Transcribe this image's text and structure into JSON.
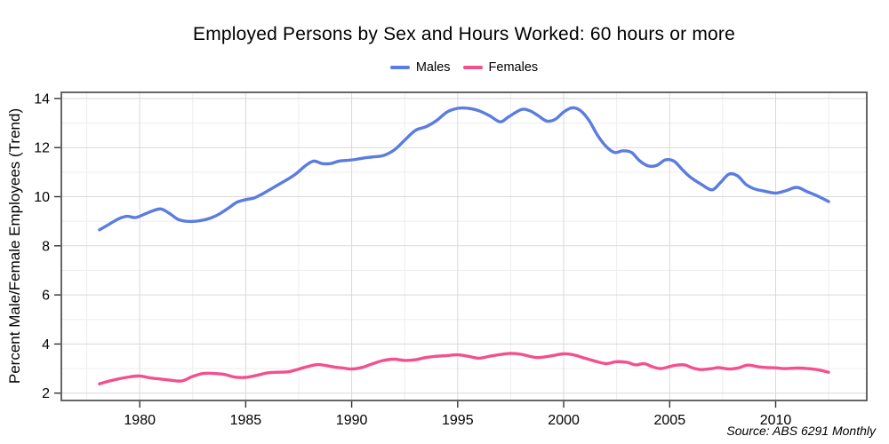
{
  "header": {
    "title": "Employed Persons by Sex and Hours Worked: 60 hours or more"
  },
  "legend": {
    "items": [
      {
        "label": "Males",
        "color": "#5b7ce0"
      },
      {
        "label": "Females",
        "color": "#f2508f"
      }
    ]
  },
  "source_note": "Source: ABS 6291 Monthly",
  "colors": {
    "major_grid": "#d9d9d9",
    "minor_grid": "#ededed",
    "panel_border": "#555555",
    "tick": "#333333",
    "tick_label": "#000000"
  },
  "chart_data": {
    "type": "line",
    "title": "Employed Persons by Sex and Hours Worked: 60 hours or more",
    "xlabel": "",
    "ylabel": "Percent Male/Female Employees (Trend)",
    "legend_position": "top",
    "grid": true,
    "xlim": [
      1976.3,
      2014.3
    ],
    "ylim": [
      1.7,
      14.25
    ],
    "x_ticks": [
      1980,
      1985,
      1990,
      1995,
      2000,
      2005,
      2010
    ],
    "x_minor_ticks": [
      1977.5,
      1982.5,
      1987.5,
      1992.5,
      1997.5,
      2002.5,
      2007.5,
      2012.5
    ],
    "y_ticks": [
      2,
      4,
      6,
      8,
      10,
      12,
      14
    ],
    "y_minor_ticks": [
      3,
      5,
      7,
      9,
      11,
      13
    ],
    "series": [
      {
        "name": "Males",
        "color": "#5b7ce0",
        "points": [
          [
            1978.1,
            8.65
          ],
          [
            1978.5,
            8.85
          ],
          [
            1979.0,
            9.1
          ],
          [
            1979.4,
            9.2
          ],
          [
            1979.8,
            9.15
          ],
          [
            1980.2,
            9.28
          ],
          [
            1980.6,
            9.42
          ],
          [
            1981.0,
            9.5
          ],
          [
            1981.4,
            9.32
          ],
          [
            1981.8,
            9.08
          ],
          [
            1982.2,
            9.0
          ],
          [
            1982.6,
            9.0
          ],
          [
            1983.0,
            9.05
          ],
          [
            1983.4,
            9.15
          ],
          [
            1983.8,
            9.32
          ],
          [
            1984.2,
            9.55
          ],
          [
            1984.6,
            9.78
          ],
          [
            1985.0,
            9.88
          ],
          [
            1985.4,
            9.95
          ],
          [
            1985.8,
            10.12
          ],
          [
            1986.2,
            10.32
          ],
          [
            1986.6,
            10.52
          ],
          [
            1987.0,
            10.72
          ],
          [
            1987.4,
            10.95
          ],
          [
            1987.8,
            11.25
          ],
          [
            1988.2,
            11.45
          ],
          [
            1988.6,
            11.35
          ],
          [
            1989.0,
            11.35
          ],
          [
            1989.4,
            11.45
          ],
          [
            1989.8,
            11.48
          ],
          [
            1990.2,
            11.52
          ],
          [
            1990.6,
            11.58
          ],
          [
            1991.0,
            11.62
          ],
          [
            1991.5,
            11.68
          ],
          [
            1992.0,
            11.9
          ],
          [
            1992.5,
            12.3
          ],
          [
            1993.0,
            12.7
          ],
          [
            1993.5,
            12.85
          ],
          [
            1994.0,
            13.1
          ],
          [
            1994.5,
            13.45
          ],
          [
            1995.0,
            13.6
          ],
          [
            1995.5,
            13.6
          ],
          [
            1996.0,
            13.5
          ],
          [
            1996.5,
            13.3
          ],
          [
            1997.0,
            13.05
          ],
          [
            1997.4,
            13.25
          ],
          [
            1998.0,
            13.55
          ],
          [
            1998.4,
            13.5
          ],
          [
            1998.8,
            13.3
          ],
          [
            1999.2,
            13.08
          ],
          [
            1999.6,
            13.15
          ],
          [
            2000.0,
            13.45
          ],
          [
            2000.4,
            13.62
          ],
          [
            2000.8,
            13.5
          ],
          [
            2001.2,
            13.1
          ],
          [
            2001.6,
            12.5
          ],
          [
            2002.0,
            12.05
          ],
          [
            2002.4,
            11.8
          ],
          [
            2002.8,
            11.87
          ],
          [
            2003.2,
            11.8
          ],
          [
            2003.6,
            11.45
          ],
          [
            2004.0,
            11.25
          ],
          [
            2004.4,
            11.28
          ],
          [
            2004.8,
            11.5
          ],
          [
            2005.2,
            11.45
          ],
          [
            2005.6,
            11.1
          ],
          [
            2006.0,
            10.78
          ],
          [
            2006.5,
            10.5
          ],
          [
            2007.0,
            10.28
          ],
          [
            2007.4,
            10.58
          ],
          [
            2007.8,
            10.92
          ],
          [
            2008.2,
            10.85
          ],
          [
            2008.6,
            10.5
          ],
          [
            2009.0,
            10.32
          ],
          [
            2009.5,
            10.22
          ],
          [
            2010.0,
            10.15
          ],
          [
            2010.5,
            10.25
          ],
          [
            2011.0,
            10.38
          ],
          [
            2011.5,
            10.2
          ],
          [
            2012.0,
            10.02
          ],
          [
            2012.5,
            9.8
          ]
        ]
      },
      {
        "name": "Females",
        "color": "#f2508f",
        "points": [
          [
            1978.1,
            2.38
          ],
          [
            1978.6,
            2.5
          ],
          [
            1979.0,
            2.58
          ],
          [
            1979.5,
            2.66
          ],
          [
            1980.0,
            2.7
          ],
          [
            1980.5,
            2.62
          ],
          [
            1981.0,
            2.57
          ],
          [
            1981.5,
            2.52
          ],
          [
            1982.0,
            2.5
          ],
          [
            1982.5,
            2.68
          ],
          [
            1983.0,
            2.8
          ],
          [
            1983.5,
            2.8
          ],
          [
            1984.0,
            2.76
          ],
          [
            1984.5,
            2.65
          ],
          [
            1985.0,
            2.64
          ],
          [
            1985.5,
            2.72
          ],
          [
            1986.0,
            2.82
          ],
          [
            1986.5,
            2.85
          ],
          [
            1987.0,
            2.87
          ],
          [
            1987.5,
            2.98
          ],
          [
            1988.0,
            3.1
          ],
          [
            1988.4,
            3.16
          ],
          [
            1988.8,
            3.12
          ],
          [
            1989.2,
            3.06
          ],
          [
            1989.6,
            3.02
          ],
          [
            1990.0,
            2.98
          ],
          [
            1990.5,
            3.05
          ],
          [
            1991.0,
            3.2
          ],
          [
            1991.5,
            3.33
          ],
          [
            1992.0,
            3.38
          ],
          [
            1992.5,
            3.33
          ],
          [
            1993.0,
            3.36
          ],
          [
            1993.5,
            3.45
          ],
          [
            1994.0,
            3.5
          ],
          [
            1994.5,
            3.53
          ],
          [
            1995.0,
            3.56
          ],
          [
            1995.5,
            3.5
          ],
          [
            1996.0,
            3.42
          ],
          [
            1996.5,
            3.5
          ],
          [
            1997.0,
            3.57
          ],
          [
            1997.5,
            3.62
          ],
          [
            1998.0,
            3.58
          ],
          [
            1998.7,
            3.45
          ],
          [
            1999.3,
            3.5
          ],
          [
            2000.0,
            3.6
          ],
          [
            2000.5,
            3.55
          ],
          [
            2001.0,
            3.42
          ],
          [
            2001.5,
            3.3
          ],
          [
            2002.0,
            3.2
          ],
          [
            2002.5,
            3.28
          ],
          [
            2003.0,
            3.25
          ],
          [
            2003.4,
            3.15
          ],
          [
            2003.8,
            3.2
          ],
          [
            2004.2,
            3.07
          ],
          [
            2004.6,
            3.0
          ],
          [
            2005.2,
            3.12
          ],
          [
            2005.7,
            3.15
          ],
          [
            2006.1,
            3.02
          ],
          [
            2006.5,
            2.96
          ],
          [
            2007.0,
            3.0
          ],
          [
            2007.3,
            3.04
          ],
          [
            2007.8,
            2.98
          ],
          [
            2008.2,
            3.02
          ],
          [
            2008.7,
            3.14
          ],
          [
            2009.2,
            3.07
          ],
          [
            2009.6,
            3.04
          ],
          [
            2010.0,
            3.03
          ],
          [
            2010.4,
            3.0
          ],
          [
            2011.0,
            3.02
          ],
          [
            2011.5,
            3.0
          ],
          [
            2012.0,
            2.95
          ],
          [
            2012.5,
            2.85
          ]
        ]
      }
    ]
  }
}
